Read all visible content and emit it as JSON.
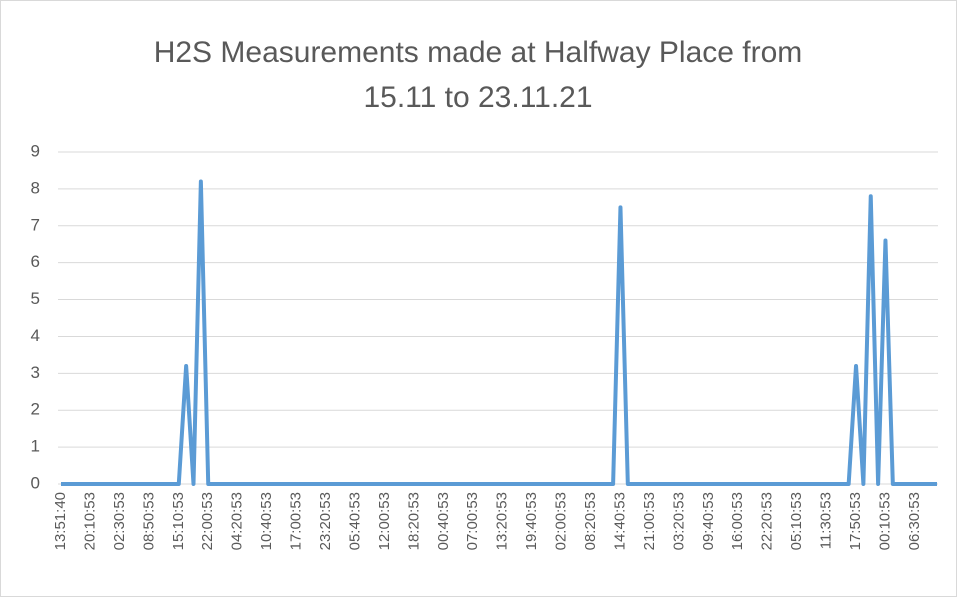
{
  "chart_data": {
    "type": "line",
    "title": [
      "H2S Measurements made at Halfway Place from",
      "15.11 to 23.11.21"
    ],
    "categories": [
      "13:51:40",
      null,
      null,
      null,
      "20:10:53",
      null,
      null,
      null,
      "02:30:53",
      null,
      null,
      null,
      "08:50:53",
      null,
      null,
      null,
      "15:10:53",
      null,
      null,
      null,
      "22:00:53",
      null,
      null,
      null,
      "04:20:53",
      null,
      null,
      null,
      "10:40:53",
      null,
      null,
      null,
      "17:00:53",
      null,
      null,
      null,
      "23:20:53",
      null,
      null,
      null,
      "05:40:53",
      null,
      null,
      null,
      "12:00:53",
      null,
      null,
      null,
      "18:20:53",
      null,
      null,
      null,
      "00:40:53",
      null,
      null,
      null,
      "07:00:53",
      null,
      null,
      null,
      "13:20:53",
      null,
      null,
      null,
      "19:40:53",
      null,
      null,
      null,
      "02:00:53",
      null,
      null,
      null,
      "08:20:53",
      null,
      null,
      null,
      "14:40:53",
      null,
      null,
      null,
      "21:00:53",
      null,
      null,
      null,
      "03:20:53",
      null,
      null,
      null,
      "09:40:53",
      null,
      null,
      null,
      "16:00:53",
      null,
      null,
      null,
      "22:20:53",
      null,
      null,
      null,
      "05:10:53",
      null,
      null,
      null,
      "11:30:53",
      null,
      null,
      null,
      "17:50:53",
      null,
      null,
      null,
      "00:10:53",
      null,
      null,
      null,
      "06:30:53",
      null,
      null,
      null
    ],
    "series": [
      {
        "color": "#5b9bd5",
        "values": [
          0,
          0,
          0,
          0,
          0,
          0,
          0,
          0,
          0,
          0,
          0,
          0,
          0,
          0,
          0,
          0,
          0,
          3.2,
          0,
          8.2,
          0,
          0,
          0,
          0,
          0,
          0,
          0,
          0,
          0,
          0,
          0,
          0,
          0,
          0,
          0,
          0,
          0,
          0,
          0,
          0,
          0,
          0,
          0,
          0,
          0,
          0,
          0,
          0,
          0,
          0,
          0,
          0,
          0,
          0,
          0,
          0,
          0,
          0,
          0,
          0,
          0,
          0,
          0,
          0,
          0,
          0,
          0,
          0,
          0,
          0,
          0,
          0,
          0,
          0,
          0,
          0,
          7.5,
          0,
          0,
          0,
          0,
          0,
          0,
          0,
          0,
          0,
          0,
          0,
          0,
          0,
          0,
          0,
          0,
          0,
          0,
          0,
          0,
          0,
          0,
          0,
          0,
          0,
          0,
          0,
          0,
          0,
          0,
          0,
          3.2,
          0,
          7.8,
          0,
          6.6,
          0,
          0,
          0,
          0,
          0,
          0,
          0
        ]
      }
    ],
    "ylim": [
      0,
      9
    ],
    "yticks": [
      0,
      1,
      2,
      3,
      4,
      5,
      6,
      7,
      8,
      9
    ],
    "grid": true
  }
}
